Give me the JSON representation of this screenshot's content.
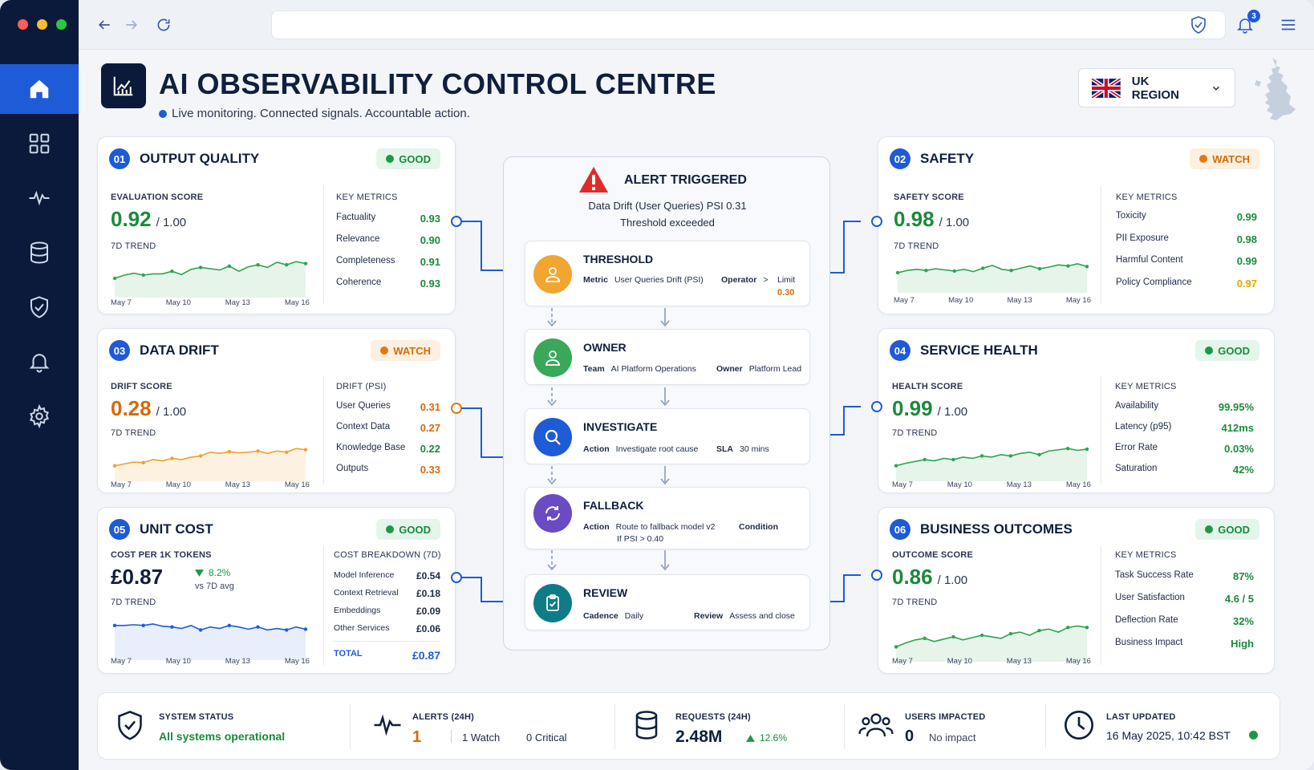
{
  "header": {
    "title": "AI OBSERVABILITY CONTROL CENTRE",
    "subtitle": "Live monitoring. Connected signals. Accountable action.",
    "region": "UK REGION",
    "notifications": "3"
  },
  "nav": {
    "icons": [
      "home-icon",
      "dashboard-grid-icon",
      "activity-pulse-icon",
      "database-icon",
      "shield-icon",
      "bell-icon",
      "gear-icon"
    ],
    "active": 0
  },
  "colors": {
    "navy": "#0b1a3a",
    "accent": "#1e5bd6",
    "good": "#1a8a3c",
    "watch": "#d46b08"
  },
  "cards": {
    "output_quality": {
      "num": "01",
      "title": "OUTPUT QUALITY",
      "status": "GOOD",
      "score_label": "EVALUATION SCORE",
      "score": "0.92",
      "out_of": "/ 1.00",
      "trend_label": "7D TREND",
      "metrics_label": "KEY METRICS",
      "metrics": [
        {
          "name": "Factuality",
          "value": "0.93"
        },
        {
          "name": "Relevance",
          "value": "0.90"
        },
        {
          "name": "Completeness",
          "value": "0.91"
        },
        {
          "name": "Coherence",
          "value": "0.93"
        }
      ],
      "axis": [
        "May 7",
        "May 10",
        "May 13",
        "May 16"
      ],
      "trend": [
        0.55,
        0.6,
        0.63,
        0.6,
        0.62,
        0.62,
        0.66,
        0.61,
        0.69,
        0.72,
        0.7,
        0.68,
        0.74,
        0.66,
        0.73,
        0.76,
        0.72,
        0.8,
        0.76,
        0.81,
        0.78
      ]
    },
    "safety": {
      "num": "02",
      "title": "SAFETY",
      "status": "WATCH",
      "score_label": "SAFETY SCORE",
      "score": "0.98",
      "out_of": "/ 1.00",
      "trend_label": "7D TREND",
      "metrics_label": "KEY METRICS",
      "metrics": [
        {
          "name": "Toxicity",
          "value": "0.99"
        },
        {
          "name": "PII Exposure",
          "value": "0.98"
        },
        {
          "name": "Harmful Content",
          "value": "0.99"
        },
        {
          "name": "Policy Compliance",
          "value": "0.97"
        }
      ],
      "axis": [
        "May 7",
        "May 10",
        "May 13",
        "May 16"
      ],
      "trend": [
        0.6,
        0.64,
        0.66,
        0.64,
        0.67,
        0.65,
        0.63,
        0.66,
        0.62,
        0.68,
        0.73,
        0.66,
        0.64,
        0.68,
        0.72,
        0.67,
        0.7,
        0.74,
        0.72,
        0.76,
        0.71
      ]
    },
    "data_drift": {
      "num": "03",
      "title": "DATA DRIFT",
      "status": "WATCH",
      "score_label": "DRIFT SCORE",
      "score": "0.28",
      "out_of": "/ 1.00",
      "trend_label": "7D TREND",
      "metrics_label": "DRIFT (PSI)",
      "metrics": [
        {
          "name": "User Queries",
          "value": "0.31"
        },
        {
          "name": "Context Data",
          "value": "0.27"
        },
        {
          "name": "Knowledge Base",
          "value": "0.22"
        },
        {
          "name": "Outputs",
          "value": "0.33"
        }
      ],
      "axis": [
        "May 7",
        "May 10",
        "May 13",
        "May 16"
      ],
      "trend": [
        0.5,
        0.53,
        0.56,
        0.55,
        0.6,
        0.58,
        0.62,
        0.6,
        0.64,
        0.66,
        0.72,
        0.7,
        0.73,
        0.71,
        0.72,
        0.74,
        0.7,
        0.74,
        0.72,
        0.78,
        0.76
      ]
    },
    "service_health": {
      "num": "04",
      "title": "SERVICE HEALTH",
      "status": "GOOD",
      "score_label": "HEALTH SCORE",
      "score": "0.99",
      "out_of": "/ 1.00",
      "trend_label": "7D TREND",
      "metrics_label": "KEY METRICS",
      "metrics": [
        {
          "name": "Availability",
          "value": "99.95%"
        },
        {
          "name": "Latency (p95)",
          "value": "412ms"
        },
        {
          "name": "Error Rate",
          "value": "0.03%"
        },
        {
          "name": "Saturation",
          "value": "42%"
        }
      ],
      "axis": [
        "May 7",
        "May 10",
        "May 13",
        "May 16"
      ],
      "trend": [
        0.5,
        0.54,
        0.57,
        0.6,
        0.58,
        0.62,
        0.6,
        0.64,
        0.62,
        0.66,
        0.64,
        0.68,
        0.66,
        0.7,
        0.72,
        0.68,
        0.74,
        0.76,
        0.78,
        0.75,
        0.77
      ]
    },
    "unit_cost": {
      "num": "05",
      "title": "UNIT COST",
      "status": "GOOD",
      "score_label": "COST PER 1K TOKENS",
      "score": "£0.87",
      "change": "8.2%",
      "change_note": "vs 7D avg",
      "trend_label": "7D TREND",
      "metrics_label": "COST BREAKDOWN (7D)",
      "metrics": [
        {
          "name": "Model Inference",
          "value": "£0.54"
        },
        {
          "name": "Context Retrieval",
          "value": "£0.18"
        },
        {
          "name": "Embeddings",
          "value": "£0.09"
        },
        {
          "name": "Other Services",
          "value": "£0.06"
        }
      ],
      "total_label": "TOTAL",
      "total": "£0.87",
      "axis": [
        "May 7",
        "May 10",
        "May 13",
        "May 16"
      ],
      "trend": [
        0.72,
        0.72,
        0.73,
        0.72,
        0.74,
        0.71,
        0.7,
        0.68,
        0.72,
        0.66,
        0.7,
        0.68,
        0.72,
        0.7,
        0.67,
        0.7,
        0.66,
        0.68,
        0.66,
        0.7,
        0.67
      ]
    },
    "business_outcomes": {
      "num": "06",
      "title": "BUSINESS OUTCOMES",
      "status": "GOOD",
      "score_label": "OUTCOME SCORE",
      "score": "0.86",
      "out_of": "/ 1.00",
      "trend_label": "7D TREND",
      "metrics_label": "KEY METRICS",
      "metrics": [
        {
          "name": "Task Success Rate",
          "value": "87%"
        },
        {
          "name": "User Satisfaction",
          "value": "4.6 / 5"
        },
        {
          "name": "Deflection Rate",
          "value": "32%"
        },
        {
          "name": "Business Impact",
          "value": "High"
        }
      ],
      "axis": [
        "May 7",
        "May 10",
        "May 13",
        "May 16"
      ],
      "trend": [
        0.45,
        0.5,
        0.54,
        0.56,
        0.52,
        0.55,
        0.58,
        0.54,
        0.57,
        0.6,
        0.58,
        0.56,
        0.62,
        0.64,
        0.6,
        0.66,
        0.68,
        0.64,
        0.7,
        0.72,
        0.7
      ]
    }
  },
  "alert": {
    "title": "ALERT TRIGGERED",
    "line1": "Data Drift (User Queries) PSI 0.31",
    "line2": "Threshold exceeded",
    "steps": [
      {
        "title": "THRESHOLD",
        "fields": [
          {
            "k": "Metric",
            "v": "User Queries Drift (PSI)"
          },
          {
            "k": "Operator",
            "v": ">"
          },
          {
            "k": "Limit",
            "v": "0.30"
          }
        ]
      },
      {
        "title": "OWNER",
        "fields": [
          {
            "k": "Team",
            "v": "AI Platform Operations"
          },
          {
            "k": "Owner",
            "v": "Platform Lead"
          }
        ]
      },
      {
        "title": "INVESTIGATE",
        "fields": [
          {
            "k": "Action",
            "v": "Investigate root cause"
          },
          {
            "k": "SLA",
            "v": "30 mins"
          }
        ]
      },
      {
        "title": "FALLBACK",
        "fields": [
          {
            "k": "Action",
            "v": "Route to fallback model v2"
          },
          {
            "k": "Condition",
            "v": "If PSI > 0.40"
          }
        ]
      },
      {
        "title": "REVIEW",
        "fields": [
          {
            "k": "Cadence",
            "v": "Daily"
          },
          {
            "k": "Review",
            "v": "Assess and close"
          }
        ]
      }
    ]
  },
  "footer": {
    "system": {
      "label": "SYSTEM STATUS",
      "value": "All systems operational"
    },
    "alerts": {
      "label": "ALERTS (24H)",
      "count": "1",
      "watch": "1 Watch",
      "critical": "0 Critical"
    },
    "requests": {
      "label": "REQUESTS (24H)",
      "value": "2.48M",
      "change": "12.6%"
    },
    "users": {
      "label": "USERS IMPACTED",
      "value": "0",
      "note": "No impact"
    },
    "updated": {
      "label": "LAST UPDATED",
      "value": "16 May 2025, 10:42 BST"
    }
  }
}
